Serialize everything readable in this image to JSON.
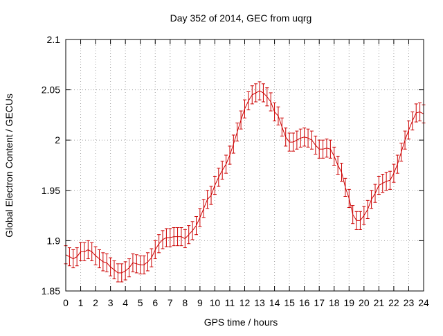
{
  "chart_data": {
    "type": "line",
    "title": "Day 352 of 2014, GEC from uqrg",
    "xlabel": "GPS time / hours",
    "ylabel": "Global Electron Content / GECUs",
    "xlim": [
      0,
      24
    ],
    "ylim": [
      1.85,
      2.1
    ],
    "xticks": [
      0,
      1,
      2,
      3,
      4,
      5,
      6,
      7,
      8,
      9,
      10,
      11,
      12,
      13,
      14,
      15,
      16,
      17,
      18,
      19,
      20,
      21,
      22,
      23,
      24
    ],
    "yticks": [
      1.85,
      1.9,
      1.95,
      2.0,
      2.05,
      2.1
    ],
    "ytick_labels": [
      "1.85",
      "1.9",
      "1.95",
      "2",
      "2.05",
      "2.1"
    ],
    "grid": true,
    "line_color": "#cc0000",
    "error_bar": 0.009,
    "series": [
      {
        "name": "",
        "x": [
          0,
          0.25,
          0.5,
          0.75,
          1,
          1.25,
          1.5,
          1.75,
          2,
          2.25,
          2.5,
          2.75,
          3,
          3.25,
          3.5,
          3.75,
          4,
          4.25,
          4.5,
          4.75,
          5,
          5.25,
          5.5,
          5.75,
          6,
          6.25,
          6.5,
          6.75,
          7,
          7.25,
          7.5,
          7.75,
          8,
          8.25,
          8.5,
          8.75,
          9,
          9.25,
          9.5,
          9.75,
          10,
          10.25,
          10.5,
          10.75,
          11,
          11.25,
          11.5,
          11.75,
          12,
          12.25,
          12.5,
          12.75,
          13,
          13.25,
          13.5,
          13.75,
          14,
          14.25,
          14.5,
          14.75,
          15,
          15.25,
          15.5,
          15.75,
          16,
          16.25,
          16.5,
          16.75,
          17,
          17.25,
          17.5,
          17.75,
          18,
          18.25,
          18.5,
          18.75,
          19,
          19.25,
          19.5,
          19.75,
          20,
          20.25,
          20.5,
          20.75,
          21,
          21.25,
          21.5,
          21.75,
          22,
          22.25,
          22.5,
          22.75,
          23,
          23.25,
          23.5,
          23.75,
          24
        ],
        "y": [
          1.886,
          1.884,
          1.882,
          1.884,
          1.889,
          1.889,
          1.891,
          1.889,
          1.885,
          1.882,
          1.879,
          1.878,
          1.874,
          1.871,
          1.868,
          1.868,
          1.87,
          1.873,
          1.878,
          1.877,
          1.876,
          1.876,
          1.879,
          1.883,
          1.891,
          1.897,
          1.901,
          1.903,
          1.903,
          1.904,
          1.904,
          1.904,
          1.902,
          1.906,
          1.91,
          1.915,
          1.923,
          1.932,
          1.941,
          1.945,
          1.955,
          1.963,
          1.97,
          1.976,
          1.985,
          1.996,
          2.008,
          2.02,
          2.031,
          2.039,
          2.045,
          2.047,
          2.049,
          2.047,
          2.043,
          2.038,
          2.028,
          2.024,
          2.013,
          2.003,
          1.998,
          1.998,
          2.0,
          2.002,
          2.003,
          2.002,
          2.0,
          1.995,
          1.991,
          1.991,
          1.992,
          1.991,
          1.984,
          1.975,
          1.968,
          1.953,
          1.942,
          1.926,
          1.92,
          1.92,
          1.925,
          1.931,
          1.941,
          1.947,
          1.955,
          1.957,
          1.959,
          1.96,
          1.967,
          1.976,
          1.988,
          2.0,
          2.01,
          2.019,
          2.027,
          2.028,
          2.026
        ]
      }
    ]
  }
}
